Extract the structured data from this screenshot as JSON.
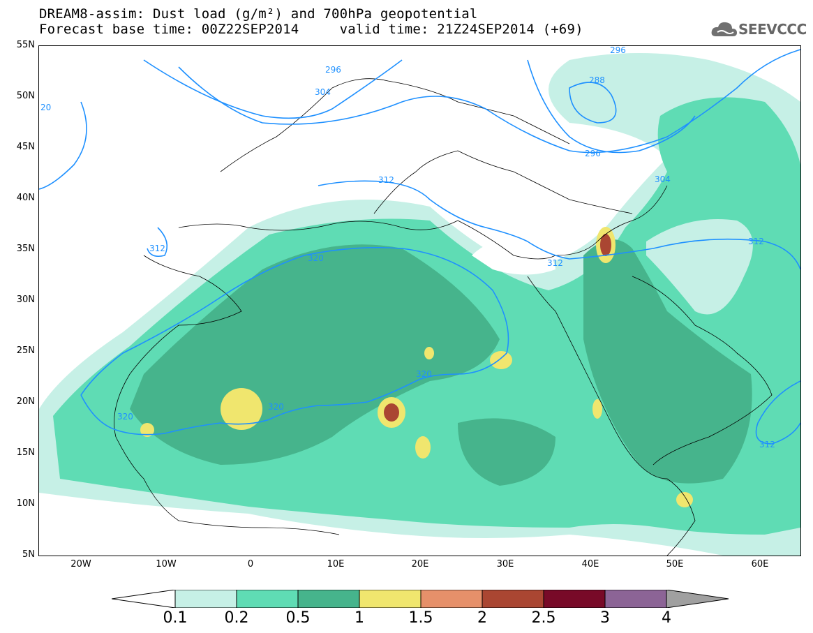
{
  "header": {
    "title_line1": "DREAM8-assim: Dust load (g/m²) and 700hPa geopotential",
    "title_line2": "Forecast base time: 00Z22SEP2014     valid time: 21Z24SEP2014 (+69)",
    "logo_text": "SEEVCCC"
  },
  "axes": {
    "lat_labels": [
      "55N",
      "50N",
      "45N",
      "40N",
      "35N",
      "30N",
      "25N",
      "20N",
      "15N",
      "10N",
      "5N"
    ],
    "lon_labels": [
      "20W",
      "10W",
      "0",
      "10E",
      "20E",
      "30E",
      "40E",
      "50E",
      "60E"
    ]
  },
  "contours": {
    "labels": [
      "296",
      "296",
      "304",
      "304",
      "288",
      "296",
      "312",
      "312",
      "312",
      "320",
      "320",
      "320",
      "320",
      "312",
      "312",
      "20"
    ],
    "color": "#1e90ff"
  },
  "colorbar": {
    "labels": [
      "0.1",
      "0.2",
      "0.5",
      "1",
      "1.5",
      "2",
      "2.5",
      "3",
      "4"
    ],
    "colors": [
      "#c6f0e6",
      "#5fdcb4",
      "#46b48c",
      "#f0e66e",
      "#e6906a",
      "#aa4632",
      "#780a28",
      "#8c6496",
      "#a0a0a0"
    ]
  },
  "legend_colors": {
    "land_low": "#c6f0e6",
    "land_mid": "#5fdcb4",
    "land_high": "#46b48c",
    "hot": "#f0e66e"
  }
}
